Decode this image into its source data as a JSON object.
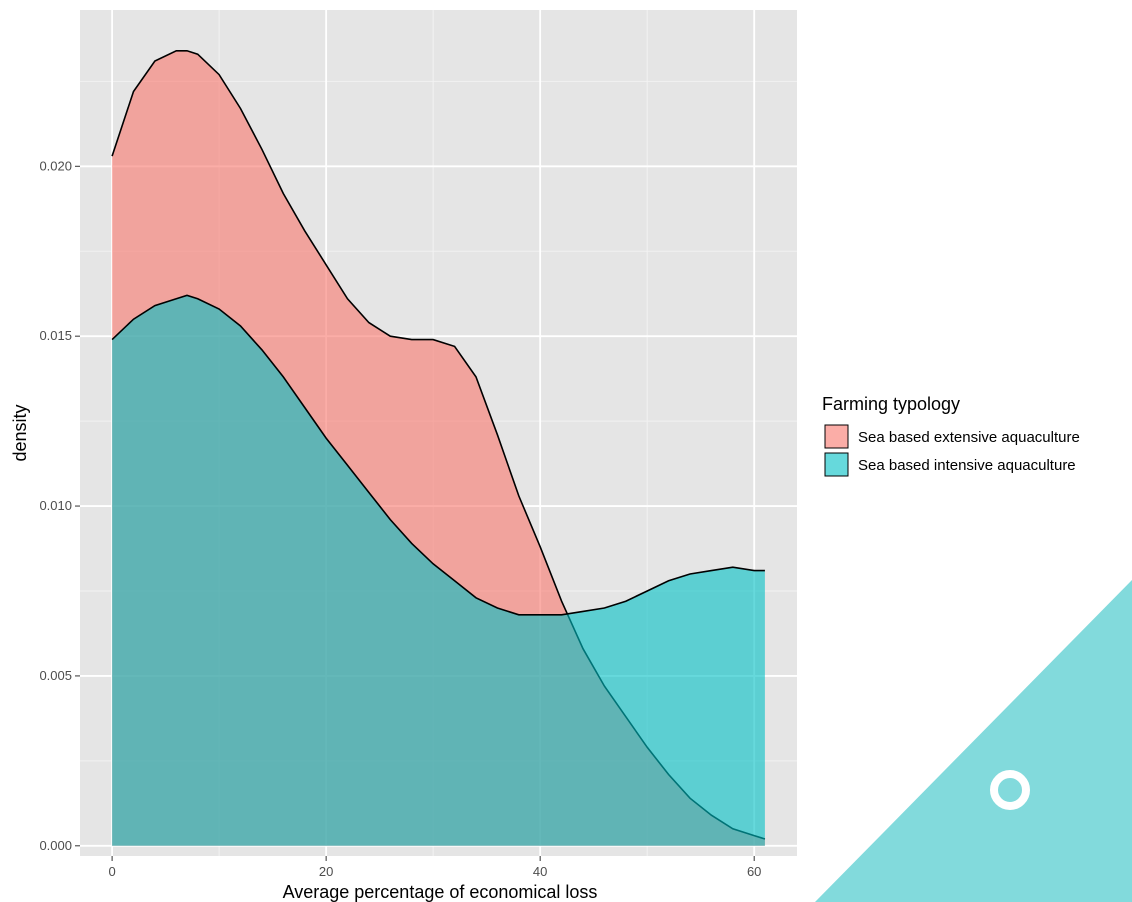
{
  "chart_data": {
    "type": "area",
    "subtype": "density",
    "xlabel": "Average  percentage of economical loss",
    "ylabel": "density",
    "xlim": [
      -3,
      64
    ],
    "ylim": [
      -0.0003,
      0.0246
    ],
    "x_ticks": [
      0,
      20,
      40,
      60
    ],
    "x_tick_labels": [
      "0",
      "20",
      "40",
      "60"
    ],
    "y_ticks": [
      0.0,
      0.005,
      0.01,
      0.015,
      0.02
    ],
    "y_tick_labels": [
      "0.000",
      "0.005",
      "0.010",
      "0.015",
      "0.020"
    ],
    "grid": true,
    "background": "#e5e5e5",
    "legend": {
      "title": "Farming typology",
      "position": "right",
      "entries": [
        "Sea based extensive aquaculture",
        "Sea based intensive aquaculture"
      ]
    },
    "series": [
      {
        "name": "Sea based extensive aquaculture",
        "color": "#f8766d",
        "x": [
          0,
          2,
          4,
          6,
          7,
          8,
          10,
          12,
          14,
          16,
          18,
          20,
          22,
          24,
          26,
          28,
          30,
          32,
          34,
          36,
          38,
          40,
          42,
          44,
          46,
          48,
          50,
          52,
          54,
          56,
          58,
          60,
          61
        ],
        "y": [
          0.0203,
          0.0222,
          0.0231,
          0.0234,
          0.0234,
          0.0233,
          0.0227,
          0.0217,
          0.0205,
          0.0192,
          0.0181,
          0.0171,
          0.0161,
          0.0154,
          0.015,
          0.0149,
          0.0149,
          0.0147,
          0.0138,
          0.0121,
          0.0103,
          0.0088,
          0.0072,
          0.0058,
          0.0047,
          0.0038,
          0.0029,
          0.0021,
          0.0014,
          0.0009,
          0.0005,
          0.0003,
          0.0002
        ]
      },
      {
        "name": "Sea based intensive aquaculture",
        "color": "#00bfc4",
        "x": [
          0,
          2,
          4,
          6,
          7,
          8,
          10,
          12,
          14,
          16,
          18,
          20,
          22,
          24,
          26,
          28,
          30,
          32,
          34,
          36,
          38,
          40,
          42,
          44,
          46,
          48,
          50,
          52,
          54,
          56,
          58,
          60,
          61
        ],
        "y": [
          0.0149,
          0.0155,
          0.0159,
          0.0161,
          0.0162,
          0.0161,
          0.0158,
          0.0153,
          0.0146,
          0.0138,
          0.0129,
          0.012,
          0.0112,
          0.0104,
          0.0096,
          0.0089,
          0.0083,
          0.0078,
          0.0073,
          0.007,
          0.0068,
          0.0068,
          0.0068,
          0.0069,
          0.007,
          0.0072,
          0.0075,
          0.0078,
          0.008,
          0.0081,
          0.0082,
          0.0081,
          0.0081
        ]
      }
    ]
  }
}
